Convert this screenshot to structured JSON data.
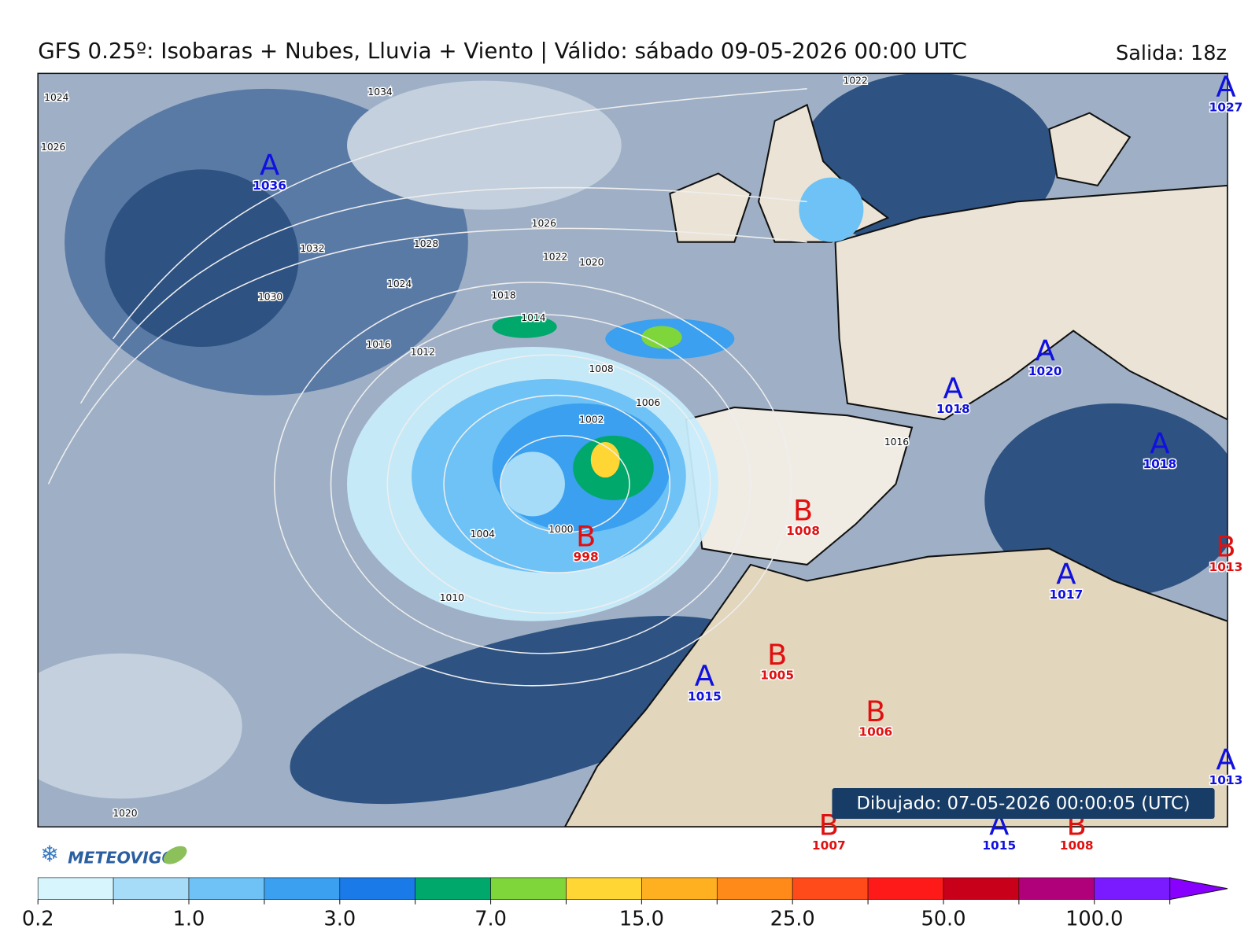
{
  "header": {
    "title": "GFS 0.25º: Isobaras + Nubes, Lluvia + Viento | Válido: sábado 09-05-2026 00:00 UTC",
    "run": "Salida: 18z",
    "drawn": "Dibujado: 07-05-2026 00:00:05 (UTC)",
    "logo": "METEOVIGO"
  },
  "isobar_labels": [
    "1034",
    "1024",
    "1026",
    "1032",
    "1030",
    "1028",
    "1026",
    "1022",
    "1020",
    "1024",
    "1018",
    "1014",
    "1016",
    "1012",
    "1008",
    "1006",
    "1002",
    "1000",
    "1004",
    "1010",
    "1016",
    "1022",
    "1020"
  ],
  "centers": [
    {
      "symbol": "A",
      "value": "1036"
    },
    {
      "symbol": "B",
      "value": "998"
    },
    {
      "symbol": "B",
      "value": "1008"
    },
    {
      "symbol": "A",
      "value": "1018"
    },
    {
      "symbol": "A",
      "value": "1020"
    },
    {
      "symbol": "A",
      "value": "1018"
    },
    {
      "symbol": "B",
      "value": "1013"
    },
    {
      "symbol": "A",
      "value": "1017"
    },
    {
      "symbol": "A",
      "value": "1015"
    },
    {
      "symbol": "B",
      "value": "1005"
    },
    {
      "symbol": "B",
      "value": "1006"
    },
    {
      "symbol": "A",
      "value": "1027"
    },
    {
      "symbol": "A",
      "value": "1013"
    },
    {
      "symbol": "B",
      "value": "1007"
    },
    {
      "symbol": "A",
      "value": "1015"
    },
    {
      "symbol": "B",
      "value": "1008"
    }
  ],
  "colorbar": {
    "colors": [
      "#d6f5fc",
      "#a6dcf7",
      "#6ec2f5",
      "#3aa0ef",
      "#1a7ae8",
      "#00a86b",
      "#7ed63a",
      "#ffd633",
      "#ffb020",
      "#ff8a1a",
      "#ff4a1a",
      "#ff1a1a",
      "#c8001a",
      "#b0007a",
      "#7a1aff",
      "#8800ff"
    ],
    "labels": [
      "0.2",
      "1.0",
      "3.0",
      "7.0",
      "15.0",
      "25.0",
      "50.0",
      "100.0"
    ]
  }
}
